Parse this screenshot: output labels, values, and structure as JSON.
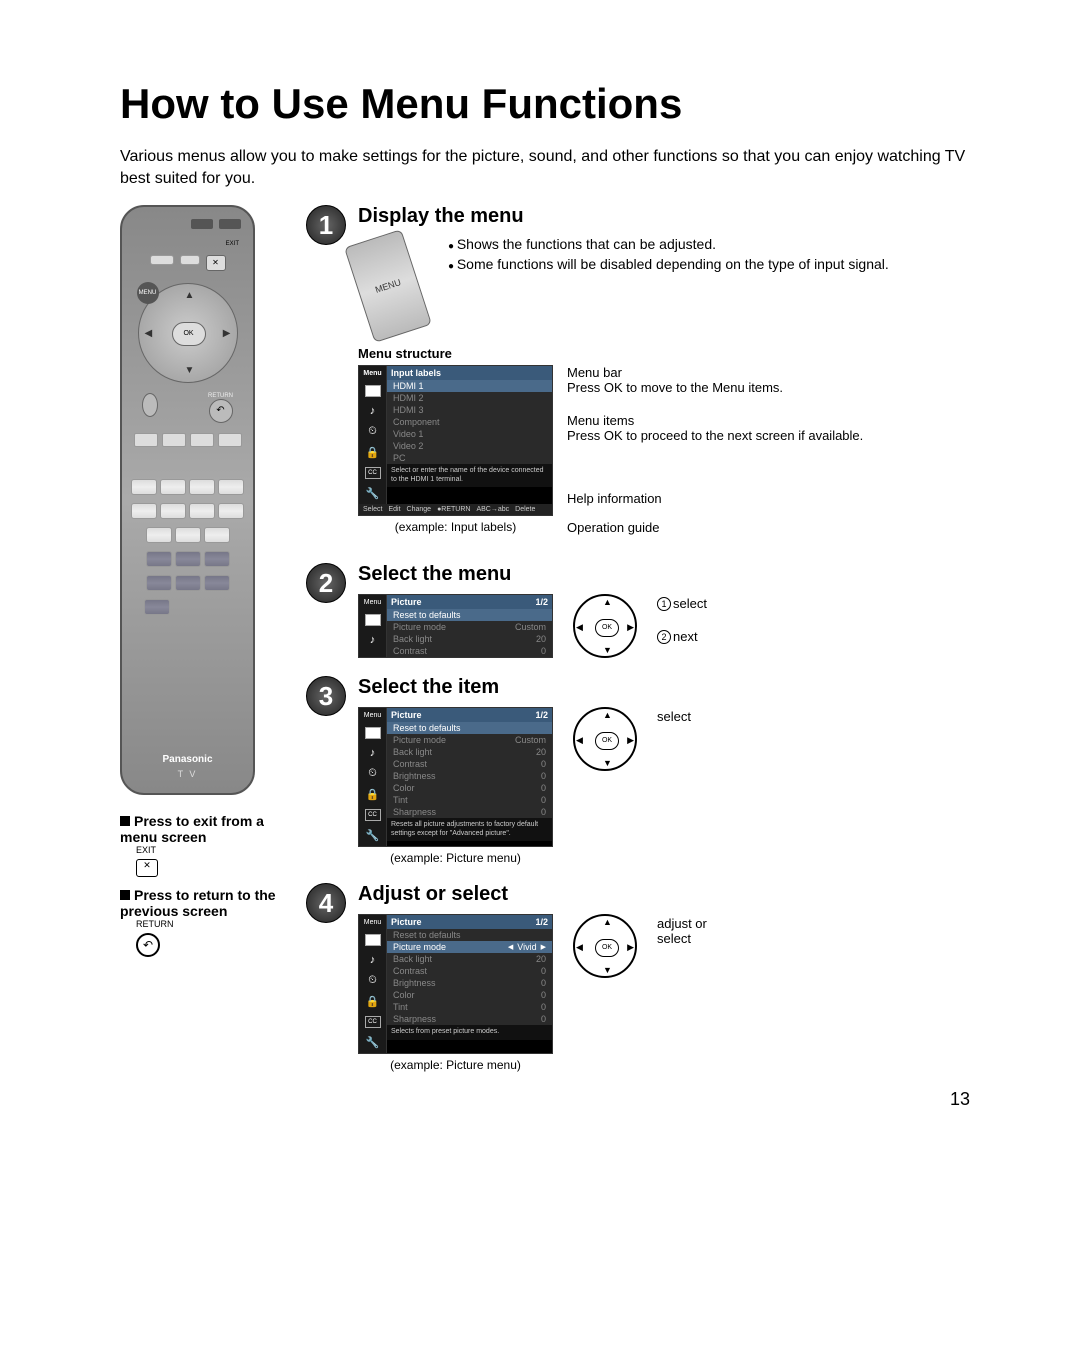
{
  "page": {
    "title": "How to Use Menu Functions",
    "intro": "Various menus allow you to make settings for the picture, sound, and other functions so that you can enjoy watching TV best suited for you.",
    "page_number": "13"
  },
  "remote": {
    "ok_label": "OK",
    "menu_label": "MENU",
    "exit_label": "EXIT",
    "return_label": "RETURN",
    "brand": "Panasonic",
    "subbrand": "T V"
  },
  "side_notes": {
    "exit": {
      "title": "Press to exit from a menu screen",
      "label": "EXIT"
    },
    "return": {
      "title": "Press to return to the previous screen",
      "label": "RETURN"
    }
  },
  "steps": {
    "s1": {
      "num": "1",
      "title": "Display the menu",
      "bullets": [
        "Shows the functions that can be adjusted.",
        "Some functions will be disabled depending on the type of input signal."
      ],
      "structure_label": "Menu structure",
      "osd": {
        "menu_label": "Menu",
        "header": "Input labels",
        "items": [
          "HDMI 1",
          "HDMI 2",
          "HDMI 3",
          "Component",
          "Video 1",
          "Video 2",
          "PC"
        ],
        "help": "Select or enter the name of the device connected to the HDMI 1 terminal.",
        "ops": {
          "select": "Select",
          "change": "Change",
          "edit": "Edit",
          "return": "RETURN",
          "abc": "ABC→abc",
          "delete": "Delete"
        },
        "caption": "(example: Input labels)"
      },
      "annos": {
        "menubar": {
          "t": "Menu bar",
          "d": "Press OK to move to the Menu items."
        },
        "items": {
          "t": "Menu items",
          "d": "Press OK to proceed to the next screen if available."
        },
        "help": {
          "t": "Help information"
        },
        "ops": {
          "t": "Operation guide"
        }
      }
    },
    "s2": {
      "num": "2",
      "title": "Select the menu",
      "osd": {
        "menu_label": "Menu",
        "header": "Picture",
        "page": "1/2",
        "rows": [
          {
            "k": "Reset to defaults",
            "v": ""
          },
          {
            "k": "Picture mode",
            "v": "Custom"
          },
          {
            "k": "Back light",
            "v": "20"
          },
          {
            "k": "Contrast",
            "v": "0"
          }
        ]
      },
      "nav": {
        "l1": "select",
        "l2": "next"
      }
    },
    "s3": {
      "num": "3",
      "title": "Select the item",
      "osd": {
        "menu_label": "Menu",
        "header": "Picture",
        "page": "1/2",
        "rows": [
          {
            "k": "Reset to defaults",
            "v": "",
            "hl": true
          },
          {
            "k": "Picture mode",
            "v": "Custom"
          },
          {
            "k": "Back light",
            "v": "20"
          },
          {
            "k": "Contrast",
            "v": "0"
          },
          {
            "k": "Brightness",
            "v": "0"
          },
          {
            "k": "Color",
            "v": "0"
          },
          {
            "k": "Tint",
            "v": "0"
          },
          {
            "k": "Sharpness",
            "v": "0"
          }
        ],
        "help": "Resets all picture adjustments to factory default settings except for \"Advanced picture\".",
        "caption": "(example:  Picture menu)"
      },
      "nav": {
        "l1": "select"
      }
    },
    "s4": {
      "num": "4",
      "title": "Adjust or select",
      "osd": {
        "menu_label": "Menu",
        "header": "Picture",
        "page": "1/2",
        "rows": [
          {
            "k": "Reset to defaults",
            "v": ""
          },
          {
            "k": "Picture mode",
            "v": "Vivid",
            "hl": true,
            "adj": true
          },
          {
            "k": "Back light",
            "v": "20"
          },
          {
            "k": "Contrast",
            "v": "0"
          },
          {
            "k": "Brightness",
            "v": "0"
          },
          {
            "k": "Color",
            "v": "0"
          },
          {
            "k": "Tint",
            "v": "0"
          },
          {
            "k": "Sharpness",
            "v": "0"
          }
        ],
        "help": "Selects from preset picture modes.",
        "caption": "(example:  Picture menu)"
      },
      "nav": {
        "l1": "adjust or select"
      }
    }
  },
  "colors": {
    "osd_header": "#3a5a7a",
    "osd_hl": "#4a6a8a",
    "osd_bg": "#000000"
  }
}
